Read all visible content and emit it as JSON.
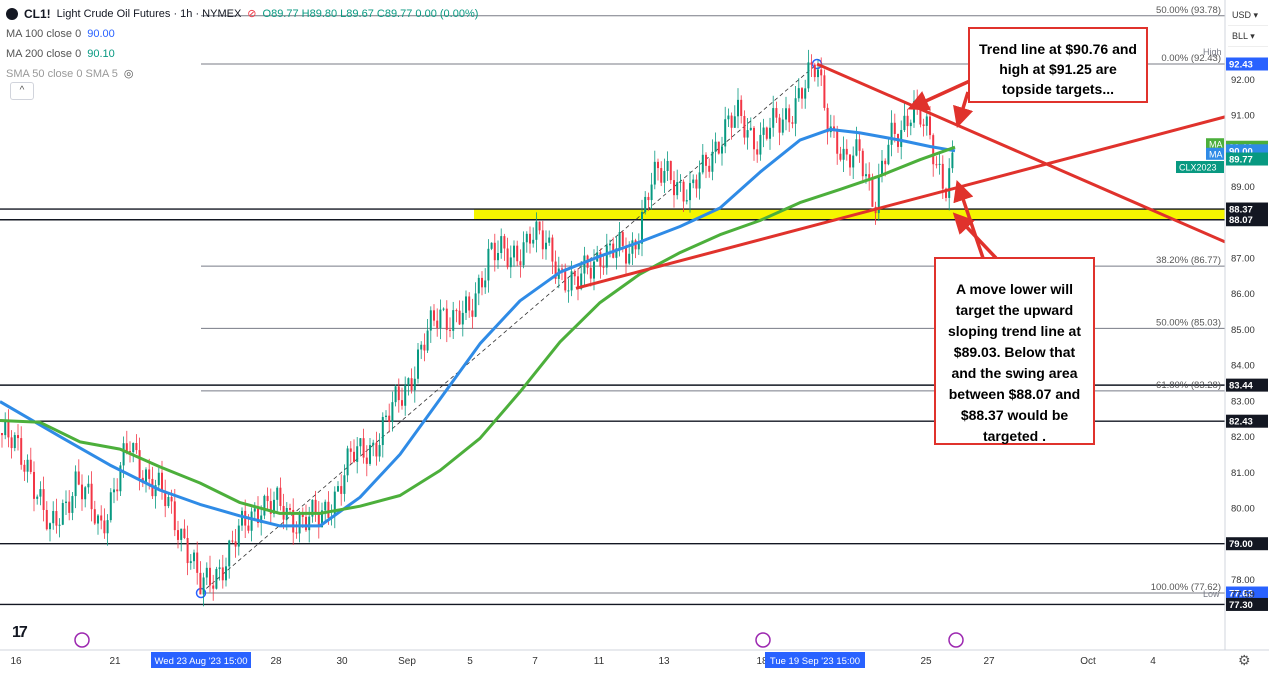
{
  "header": {
    "symbol": "CL1!",
    "title": "Light Crude Oil Futures · 1h · NYMEX",
    "ohlc": "O89.77 H89.80 L89.67 C89.77 0.00 (0.00%)",
    "indicators": [
      {
        "label": "MA 100 close 0",
        "value": "90.00",
        "color": "#2962ff"
      },
      {
        "label": "MA 200 close 0",
        "value": "90.10",
        "color": "#089981"
      },
      {
        "label": "SMA 50 close 0 SMA 5",
        "value": "",
        "color": "#999999"
      }
    ],
    "collapse_label": "^"
  },
  "top_controls": {
    "currency": "USD",
    "unit": "BLL"
  },
  "colors": {
    "ma100": "#2f8be6",
    "ma200": "#4caf3b",
    "trend": "#e0322c",
    "zone": "#f5f500",
    "up": "#089981",
    "down": "#f23645",
    "fib": "#787b86"
  },
  "chart_data": {
    "type": "line",
    "title": "Light Crude Oil Futures · 1h · NYMEX",
    "ylim": [
      77.0,
      94.0
    ],
    "x_tick_labels": [
      {
        "x": 16,
        "label": "16"
      },
      {
        "x": 115,
        "label": "21"
      },
      {
        "x": 276,
        "label": "28"
      },
      {
        "x": 342,
        "label": "30"
      },
      {
        "x": 407,
        "label": "Sep"
      },
      {
        "x": 470,
        "label": "5"
      },
      {
        "x": 535,
        "label": "7"
      },
      {
        "x": 599,
        "label": "11"
      },
      {
        "x": 664,
        "label": "13"
      },
      {
        "x": 762,
        "label": "18"
      },
      {
        "x": 926,
        "label": "25"
      },
      {
        "x": 989,
        "label": "27"
      },
      {
        "x": 1088,
        "label": "Oct"
      },
      {
        "x": 1153,
        "label": "4"
      }
    ],
    "x_highlight_labels": [
      {
        "x": 201,
        "label": "Wed 23 Aug '23   15:00"
      },
      {
        "x": 815,
        "label": "Tue 19 Sep '23   15:00"
      }
    ],
    "y_tick_labels": [
      "78.00",
      "80.00",
      "81.00",
      "82.00",
      "83.00",
      "84.00",
      "85.00",
      "86.00",
      "87.00",
      "89.00",
      "91.00",
      "92.00"
    ],
    "price_labels": [
      {
        "value": 92.43,
        "label": "92.43",
        "bg": "#2962ff",
        "fg": "#ffffff"
      },
      {
        "value": 90.1,
        "label": "90.10",
        "bg": "#4caf3b",
        "fg": "#ffffff"
      },
      {
        "value": 90.0,
        "label": "90.00",
        "bg": "#2f8be6",
        "fg": "#ffffff"
      },
      {
        "value": 89.77,
        "label": "89.77",
        "bg": "#089981",
        "fg": "#ffffff"
      },
      {
        "value": 88.37,
        "label": "88.37",
        "bg": "#131722",
        "fg": "#ffffff"
      },
      {
        "value": 88.07,
        "label": "88.07",
        "bg": "#131722",
        "fg": "#ffffff"
      },
      {
        "value": 83.44,
        "label": "83.44",
        "bg": "#131722",
        "fg": "#ffffff"
      },
      {
        "value": 82.43,
        "label": "82.43",
        "bg": "#131722",
        "fg": "#ffffff"
      },
      {
        "value": 79.0,
        "label": "79.00",
        "bg": "#131722",
        "fg": "#ffffff"
      },
      {
        "value": 77.62,
        "label": "77.62",
        "bg": "#2962ff",
        "fg": "#ffffff"
      },
      {
        "value": 77.3,
        "label": "77.30",
        "bg": "#131722",
        "fg": "#ffffff"
      }
    ],
    "side_tags": [
      {
        "value": 90.1,
        "label": "MA",
        "bg": "#4caf3b"
      },
      {
        "value": 90.0,
        "label": "MA",
        "bg": "#2f8be6"
      },
      {
        "value": 89.77,
        "label": "CLX2023",
        "bg": "#089981"
      }
    ],
    "high_low": [
      {
        "value": 92.43,
        "label": "High"
      },
      {
        "value": 77.59,
        "label": "Low",
        "text": "77.59"
      }
    ],
    "fib_levels": [
      {
        "value": 93.78,
        "label": "50.00% (93.78)"
      },
      {
        "value": 92.43,
        "label": "0.00% (92.43)"
      },
      {
        "value": 86.77,
        "label": "38.20% (86.77)"
      },
      {
        "value": 85.03,
        "label": "50.00% (85.03)"
      },
      {
        "value": 83.28,
        "label": "61.80% (83.28)"
      },
      {
        "value": 77.62,
        "label": "100.00% (77.62)"
      }
    ],
    "horizontal_levels": [
      88.37,
      88.07,
      83.44,
      82.43,
      79.0,
      77.3
    ],
    "swing_zone": [
      88.07,
      88.37
    ],
    "fib_anchor_low": {
      "x": 201,
      "y": 77.62
    },
    "fib_anchor_high": {
      "x": 817,
      "y": 92.43
    },
    "trend_lines": [
      {
        "name": "down",
        "p1": {
          "x": 817,
          "y": 92.43
        },
        "p2": {
          "x": 1225,
          "y": 87.45
        }
      },
      {
        "name": "up",
        "p1": {
          "x": 576,
          "y": 86.15
        },
        "p2": {
          "x": 1225,
          "y": 90.95
        }
      }
    ],
    "series": [
      {
        "name": "MA 100",
        "color": "#2f8be6",
        "x": [
          0,
          60,
          110,
          160,
          200,
          240,
          280,
          320,
          360,
          400,
          440,
          480,
          520,
          560,
          600,
          640,
          680,
          720,
          760,
          800,
          830,
          860,
          900,
          930,
          955
        ],
        "y": [
          82.98,
          82.0,
          81.2,
          80.5,
          80.1,
          79.78,
          79.5,
          79.5,
          80.3,
          81.5,
          83.05,
          84.6,
          85.8,
          86.6,
          87.05,
          87.45,
          87.88,
          88.4,
          89.4,
          90.3,
          90.6,
          90.5,
          90.3,
          90.12,
          90.0
        ]
      },
      {
        "name": "MA 200",
        "color": "#4caf3b",
        "x": [
          0,
          40,
          80,
          120,
          160,
          200,
          240,
          280,
          320,
          360,
          400,
          440,
          480,
          520,
          560,
          600,
          640,
          680,
          720,
          760,
          800,
          840,
          880,
          920,
          955
        ],
        "y": [
          82.45,
          82.4,
          81.85,
          81.65,
          81.15,
          80.7,
          80.15,
          79.85,
          79.85,
          80.05,
          80.35,
          81.05,
          81.95,
          83.25,
          84.65,
          85.75,
          86.55,
          87.15,
          87.65,
          88.05,
          88.55,
          88.92,
          89.3,
          89.75,
          90.1
        ]
      },
      {
        "name": "Price",
        "color": "#089981",
        "x": [
          0,
          30,
          50,
          75,
          100,
          130,
          160,
          185,
          201,
          230,
          260,
          290,
          320,
          350,
          380,
          410,
          440,
          470,
          490,
          510,
          530,
          555,
          576,
          600,
          630,
          650,
          670,
          690,
          710,
          740,
          760,
          790,
          805,
          817,
          830,
          845,
          860,
          875,
          890,
          912,
          930,
          945,
          955
        ],
        "y": [
          82.1,
          81.2,
          79.2,
          80.8,
          79.5,
          81.7,
          80.4,
          79.2,
          77.62,
          78.8,
          80.2,
          79.8,
          79.6,
          81.3,
          82.0,
          83.7,
          85.5,
          85.3,
          87.4,
          86.8,
          87.8,
          86.9,
          86.15,
          87.2,
          87.1,
          89.0,
          89.5,
          88.6,
          90.0,
          91.0,
          90.2,
          91.2,
          91.7,
          92.43,
          90.8,
          89.4,
          90.2,
          88.4,
          90.3,
          91.2,
          90.3,
          89.1,
          89.77
        ]
      }
    ]
  },
  "callouts": {
    "top": "Trend line at $90.76 and high at $91.25 are topside targets...",
    "bottom": "A move lower will target the upward sloping trend line at $89.03. Below that and the swing area between $88.07 and $88.37 would be targeted ."
  }
}
